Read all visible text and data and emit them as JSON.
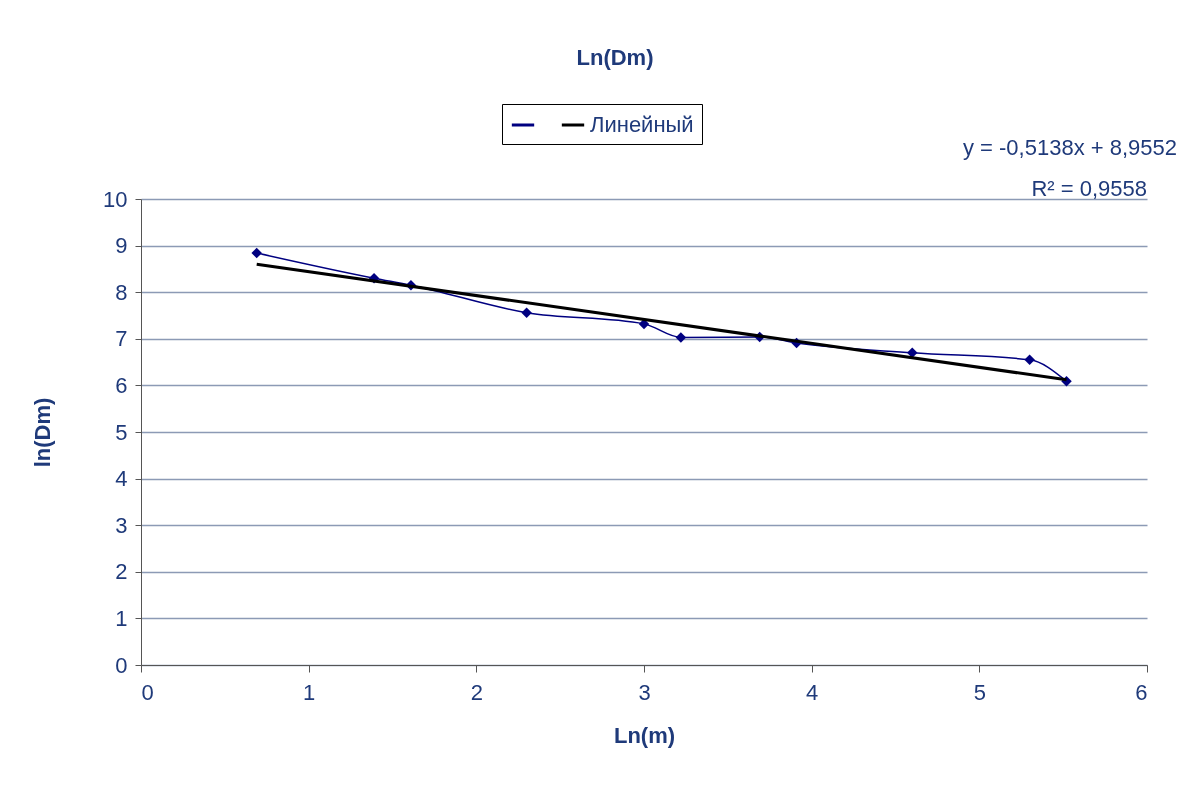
{
  "chart_data": {
    "type": "line",
    "title": "Ln(Dm)",
    "xlabel": "Ln(m)",
    "ylabel": "ln(Dm)",
    "x": [
      0.69,
      1.39,
      1.61,
      2.3,
      3.0,
      3.22,
      3.69,
      3.91,
      4.6,
      5.3,
      5.52
    ],
    "series": [
      {
        "color": "#000080",
        "values": [
          8.84,
          8.3,
          8.15,
          7.56,
          7.32,
          7.03,
          7.04,
          6.91,
          6.7,
          6.55,
          6.09
        ]
      },
      {
        "name": "Линейный",
        "type": "line",
        "marker": "none",
        "color": "#000000",
        "x": [
          0.69,
          5.52
        ],
        "values": [
          8.6,
          6.12
        ]
      }
    ],
    "xlim": [
      0,
      6
    ],
    "xticks": [
      0,
      1,
      2,
      3,
      4,
      5,
      6
    ],
    "ylim": [
      0,
      10
    ],
    "yticks": [
      0,
      1,
      2,
      3,
      4,
      5,
      6,
      7,
      8,
      9,
      10
    ],
    "grid": "y",
    "legend": "top",
    "marker": "diamond",
    "annotations": [
      "y = -0,5138x + 8,9552",
      "R² = 0,9558"
    ]
  }
}
